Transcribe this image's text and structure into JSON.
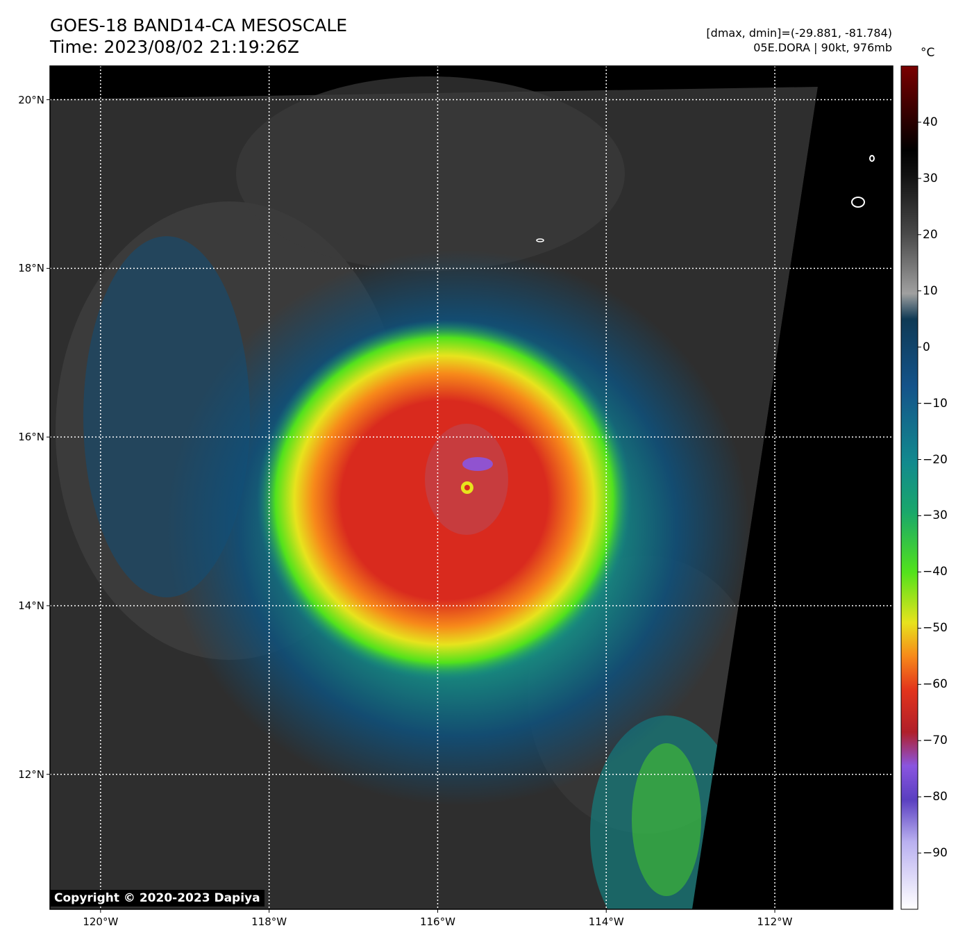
{
  "header": {
    "title_line1": "GOES-18 BAND14-CA MESOSCALE",
    "title_line2": "Time: 2023/08/02 21:19:26Z",
    "range_text": "[dmax, dmin]=(-29.881, -81.784)",
    "storm_text": "05E.DORA | 90kt, 976mb"
  },
  "map": {
    "lon_range": [
      -120.6,
      -110.6
    ],
    "lat_range": [
      10.4,
      20.4
    ],
    "lat_ticks": [
      {
        "value": 20,
        "label": "20°N"
      },
      {
        "value": 18,
        "label": "18°N"
      },
      {
        "value": 16,
        "label": "16°N"
      },
      {
        "value": 14,
        "label": "14°N"
      },
      {
        "value": 12,
        "label": "12°N"
      }
    ],
    "lon_ticks": [
      {
        "value": -120,
        "label": "120°W"
      },
      {
        "value": -118,
        "label": "118°W"
      },
      {
        "value": -116,
        "label": "116°W"
      },
      {
        "value": -114,
        "label": "114°W"
      },
      {
        "value": -112,
        "label": "112°W"
      }
    ],
    "storm_center": {
      "lon": -115.65,
      "lat": 15.4
    },
    "grid": true,
    "background_color": "#000000"
  },
  "colorbar": {
    "unit": "°C",
    "min": -100,
    "max": 50,
    "ticks": [
      {
        "value": 40,
        "label": "40"
      },
      {
        "value": 30,
        "label": "30"
      },
      {
        "value": 20,
        "label": "20"
      },
      {
        "value": 10,
        "label": "10"
      },
      {
        "value": 0,
        "label": "0"
      },
      {
        "value": -10,
        "label": "−10"
      },
      {
        "value": -20,
        "label": "−20"
      },
      {
        "value": -30,
        "label": "−30"
      },
      {
        "value": -40,
        "label": "−40"
      },
      {
        "value": -50,
        "label": "−50"
      },
      {
        "value": -60,
        "label": "−60"
      },
      {
        "value": -70,
        "label": "−70"
      },
      {
        "value": -80,
        "label": "−80"
      },
      {
        "value": -90,
        "label": "−90"
      }
    ],
    "colors": {
      "cold_white": "#f4f2ff",
      "purple": "#8a55e0",
      "dark_red": "#7a0000",
      "red": "#d92a1e",
      "orange": "#f7891a",
      "yellow": "#e7e31d",
      "green": "#52e21c",
      "teal": "#0f8a8a",
      "blue": "#104f78",
      "gray": "#808080",
      "black": "#000000"
    }
  },
  "footer": {
    "copyright": "Copyright © 2020-2023 Dapiya"
  }
}
